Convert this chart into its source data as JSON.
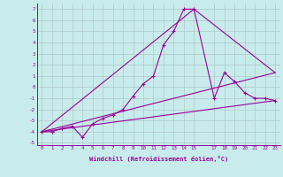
{
  "xlabel": "Windchill (Refroidissement éolien,°C)",
  "bg_color": "#c8ecec",
  "grid_color": "#b0c8c8",
  "line_color": "#990099",
  "xlim": [
    -0.5,
    23.5
  ],
  "ylim": [
    -5.2,
    7.5
  ],
  "xticks": [
    0,
    1,
    2,
    3,
    4,
    5,
    6,
    7,
    8,
    9,
    10,
    11,
    12,
    13,
    14,
    15,
    17,
    18,
    19,
    20,
    21,
    22,
    23
  ],
  "yticks": [
    -5,
    -4,
    -3,
    -2,
    -1,
    0,
    1,
    2,
    3,
    4,
    5,
    6,
    7
  ],
  "main_line": {
    "x": [
      0,
      1,
      2,
      3,
      4,
      5,
      6,
      7,
      8,
      9,
      10,
      11,
      12,
      13,
      14,
      15,
      17,
      18,
      19,
      20,
      21,
      22,
      23
    ],
    "y": [
      -4,
      -4,
      -3.7,
      -3.5,
      -4.5,
      -3.3,
      -2.8,
      -2.5,
      -2,
      -0.8,
      0.3,
      1.0,
      3.8,
      5.0,
      7.0,
      7.0,
      -1.0,
      1.3,
      0.5,
      -0.5,
      -1.0,
      -1.0,
      -1.2
    ]
  },
  "line_upper": {
    "x": [
      0,
      15,
      23
    ],
    "y": [
      -4,
      7.0,
      1.3
    ]
  },
  "line_mid": {
    "x": [
      0,
      23
    ],
    "y": [
      -4,
      1.3
    ]
  },
  "line_lower": {
    "x": [
      0,
      23
    ],
    "y": [
      -4,
      -1.2
    ]
  }
}
